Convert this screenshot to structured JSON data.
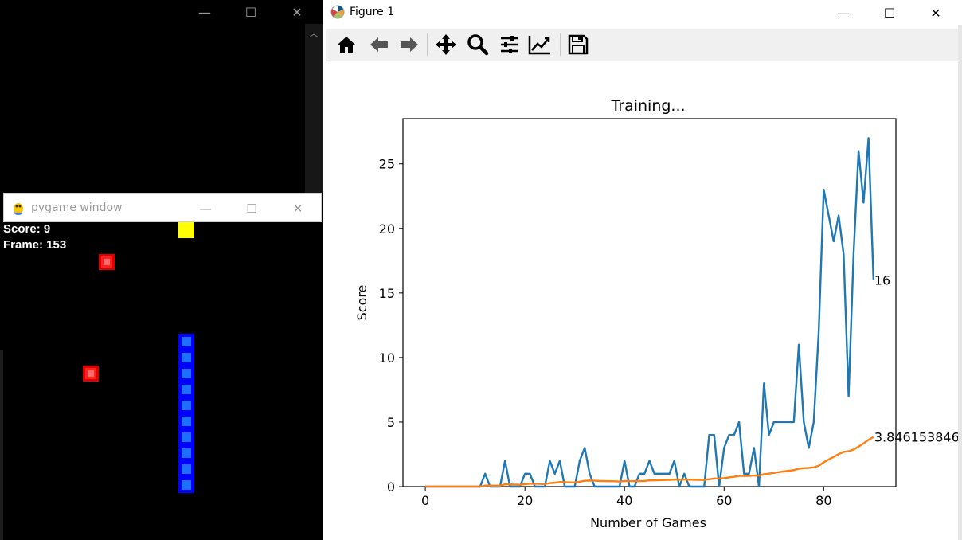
{
  "pygame": {
    "title": "pygame window",
    "score_text": "Score: 9",
    "frame_text": "Frame: 153",
    "colors": {
      "food": "#ff2020",
      "head": "#ffff00",
      "body": "#0000ff"
    }
  },
  "figure": {
    "title": "Figure 1",
    "toolbar": [
      "home-icon",
      "back-arrow-icon",
      "forward-arrow-icon",
      "pan-icon",
      "zoom-icon",
      "configure-subplots-icon",
      "edit-axis-icon",
      "save-icon"
    ]
  },
  "chart_data": {
    "type": "line",
    "title": "Training...",
    "xlabel": "Number of Games",
    "ylabel": "Score",
    "xlim": [
      -4.5,
      94.5
    ],
    "ylim": [
      0,
      28.5
    ],
    "xticks": [
      0,
      20,
      40,
      60,
      80
    ],
    "yticks": [
      0,
      5,
      10,
      15,
      20,
      25
    ],
    "series": [
      {
        "color": "#1f77b4",
        "values": [
          0,
          0,
          0,
          0,
          0,
          0,
          0,
          0,
          0,
          0,
          0,
          0,
          1,
          0,
          0,
          0,
          2,
          0,
          0,
          0,
          1,
          1,
          0,
          0,
          0,
          2,
          1,
          2,
          0,
          0,
          0,
          2,
          3,
          1,
          0,
          0,
          0,
          0,
          0,
          0,
          2,
          0,
          0,
          1,
          1,
          2,
          1,
          1,
          1,
          1,
          2,
          0,
          1,
          0,
          0,
          0,
          0,
          4,
          4,
          0,
          3,
          4,
          4,
          5,
          1,
          1,
          3,
          0,
          8,
          4,
          5,
          5,
          5,
          5,
          5,
          11,
          5,
          3,
          5,
          12,
          23,
          21,
          19,
          21,
          18,
          7,
          18,
          26,
          22,
          27,
          16
        ],
        "end_label": "16"
      },
      {
        "color": "#ff7f0e",
        "values": [
          0,
          0,
          0,
          0,
          0,
          0,
          0,
          0,
          0,
          0,
          0,
          0,
          0.08,
          0.08,
          0.07,
          0.07,
          0.18,
          0.17,
          0.16,
          0.15,
          0.19,
          0.23,
          0.22,
          0.21,
          0.2,
          0.27,
          0.3,
          0.36,
          0.34,
          0.33,
          0.32,
          0.38,
          0.45,
          0.47,
          0.46,
          0.44,
          0.43,
          0.42,
          0.41,
          0.4,
          0.44,
          0.43,
          0.42,
          0.43,
          0.44,
          0.48,
          0.49,
          0.5,
          0.51,
          0.52,
          0.55,
          0.54,
          0.55,
          0.54,
          0.53,
          0.52,
          0.51,
          0.57,
          0.63,
          0.62,
          0.66,
          0.71,
          0.76,
          0.83,
          0.83,
          0.83,
          0.86,
          0.85,
          0.96,
          1.01,
          1.07,
          1.12,
          1.18,
          1.23,
          1.28,
          1.39,
          1.43,
          1.45,
          1.49,
          1.62,
          1.88,
          2.11,
          2.3,
          2.52,
          2.69,
          2.74,
          2.87,
          3.1,
          3.35,
          3.62,
          3.846153846
        ],
        "end_label": "3.846153846"
      }
    ]
  }
}
